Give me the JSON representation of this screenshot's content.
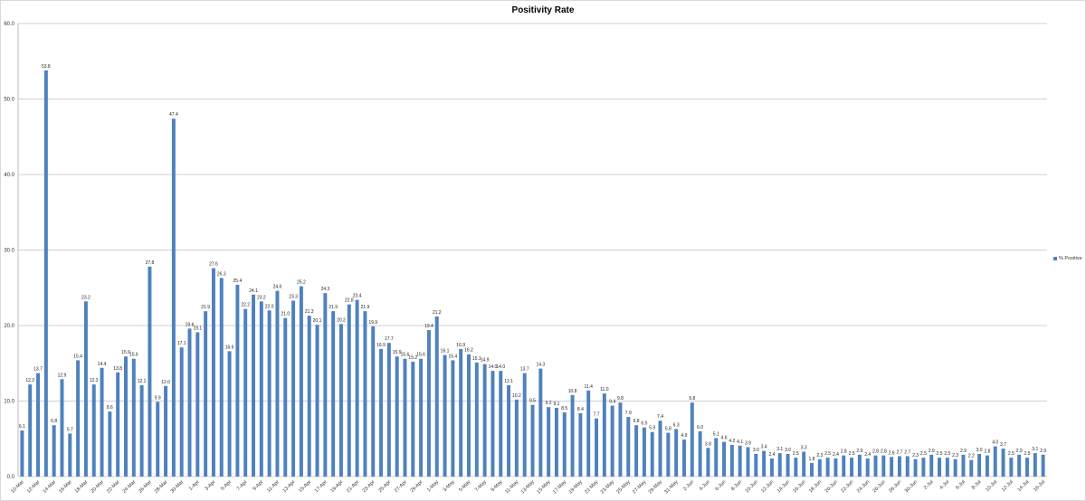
{
  "chart_data": {
    "type": "bar",
    "title": "Positivity Rate",
    "xlabel": "",
    "ylabel": "",
    "ylim": [
      0,
      60
    ],
    "yticks": [
      "0.0",
      "10.0",
      "20.0",
      "30.0",
      "40.0",
      "50.0",
      "60.0"
    ],
    "grid": true,
    "legend_position": "right",
    "colors": {
      "bar": "#4f81bd",
      "grid": "#d0d0d0"
    },
    "series": [
      {
        "name": "% Positive",
        "values": [
          6.1,
          12.2,
          13.7,
          53.8,
          6.8,
          12.9,
          5.7,
          15.4,
          23.2,
          12.2,
          14.4,
          8.6,
          13.8,
          15.9,
          15.6,
          12.1,
          27.8,
          9.9,
          12.0,
          47.4,
          17.1,
          19.6,
          19.1,
          21.9,
          27.6,
          26.3,
          16.6,
          25.4,
          22.2,
          24.1,
          23.2,
          22.0,
          24.6,
          21.0,
          23.3,
          25.2,
          21.3,
          20.1,
          24.3,
          21.9,
          20.2,
          22.8,
          23.4,
          21.9,
          19.9,
          16.9,
          17.7,
          15.9,
          15.6,
          15.2,
          15.6,
          19.4,
          21.2,
          16.1,
          15.4,
          16.9,
          16.2,
          15.1,
          14.9,
          14.0,
          14.0,
          12.1,
          10.2,
          13.7,
          9.5,
          14.3,
          9.2,
          9.1,
          8.5,
          10.8,
          8.4,
          11.4,
          7.7,
          11.0,
          9.4,
          9.8,
          7.9,
          6.8,
          6.5,
          5.9,
          7.4,
          5.8,
          6.3,
          4.9,
          9.8,
          6.0,
          3.8,
          5.1,
          4.6,
          4.2,
          4.1,
          3.9,
          3.0,
          3.4,
          2.4,
          3.1,
          3.0,
          2.5,
          3.3,
          1.8,
          2.3,
          2.5,
          2.4,
          2.8,
          2.5,
          2.9,
          2.4,
          2.8,
          2.8,
          2.6,
          2.7,
          2.7,
          2.3,
          2.5,
          2.9,
          2.5,
          2.5,
          2.3,
          2.9,
          2.2,
          3.0,
          2.8,
          4.0,
          3.7,
          2.5,
          2.9,
          2.5,
          3.1,
          2.9
        ]
      }
    ],
    "categories": [
      "10-Mar",
      "11-Mar",
      "12-Mar",
      "13-Mar",
      "14-Mar",
      "15-Mar",
      "16-Mar",
      "17-Mar",
      "18-Mar",
      "19-Mar",
      "20-Mar",
      "21-Mar",
      "22-Mar",
      "23-Mar",
      "24-Mar",
      "25-Mar",
      "26-Mar",
      "27-Mar",
      "28-Mar",
      "29-Mar",
      "30-Mar",
      "31-Mar",
      "1-Apr",
      "2-Apr",
      "3-Apr",
      "4-Apr",
      "5-Apr",
      "6-Apr",
      "7-Apr",
      "8-Apr",
      "9-Apr",
      "10-Apr",
      "11-Apr",
      "12-Apr",
      "13-Apr",
      "14-Apr",
      "15-Apr",
      "16-Apr",
      "17-Apr",
      "18-Apr",
      "19-Apr",
      "20-Apr",
      "21-Apr",
      "22-Apr",
      "23-Apr",
      "24-Apr",
      "25-Apr",
      "26-Apr",
      "27-Apr",
      "28-Apr",
      "29-Apr",
      "30-Apr",
      "1-May",
      "2-May",
      "3-May",
      "4-May",
      "5-May",
      "6-May",
      "7-May",
      "8-May",
      "9-May",
      "10-May",
      "11-May",
      "12-May",
      "13-May",
      "14-May",
      "15-May",
      "16-May",
      "17-May",
      "18-May",
      "19-May",
      "20-May",
      "21-May",
      "22-May",
      "23-May",
      "24-May",
      "25-May",
      "26-May",
      "27-May",
      "28-May",
      "29-May",
      "30-May",
      "31-May",
      "1-Jun",
      "2-Jun",
      "3-Jun",
      "4-Jun",
      "5-Jun",
      "6-Jun",
      "7-Jun",
      "8-Jun",
      "9-Jun",
      "10-Jun",
      "11-Jun",
      "12-Jun",
      "13-Jun",
      "14-Jun",
      "15-Jun",
      "16-Jun",
      "17-Jun",
      "18-Jun",
      "19-Jun",
      "20-Jun",
      "21-Jun",
      "22-Jun",
      "23-Jun",
      "24-Jun",
      "25-Jun",
      "26-Jun",
      "27-Jun",
      "28-Jun",
      "29-Jun",
      "30-Jun",
      "1-Jul",
      "2-Jul",
      "3-Jul",
      "4-Jul",
      "5-Jul",
      "6-Jul",
      "7-Jul",
      "8-Jul",
      "9-Jul",
      "10-Jul",
      "11-Jul",
      "12-Jul",
      "13-Jul",
      "14-Jul",
      "15-Jul",
      "16-Jul"
    ],
    "x_label_every": 2
  }
}
